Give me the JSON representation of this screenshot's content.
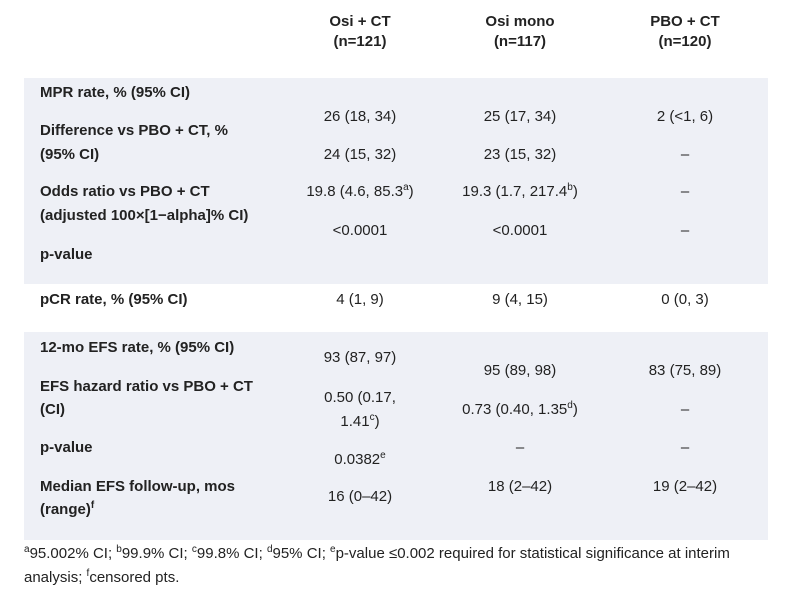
{
  "header": {
    "columns": [
      {
        "name": "Osi + CT",
        "n": "(n=121)"
      },
      {
        "name": "Osi mono",
        "n": "(n=117)"
      },
      {
        "name": "PBO + CT",
        "n": "(n=120)"
      }
    ]
  },
  "mpr": {
    "labels": [
      "MPR rate, % (95% CI)",
      "Difference vs PBO + CT, %",
      "(95% CI)",
      "Odds ratio vs PBO + CT",
      "(adjusted 100×[1−alpha]% CI)",
      "p-value"
    ],
    "cells": [
      [
        "26 (18, 34)",
        "24 (15, 32)",
        {
          "text": "19.8 (4.6, 85.3",
          "sup": "a",
          "tail": ")"
        },
        "<0.0001"
      ],
      [
        "25 (17, 34)",
        "23 (15, 32)",
        {
          "text": "19.3 (1.7, 217.4",
          "sup": "b",
          "tail": ")"
        },
        "<0.0001"
      ],
      [
        "2 (<1, 6)",
        "–",
        "–",
        "–"
      ]
    ]
  },
  "pcr": {
    "label": "pCR rate, % (95% CI)",
    "cells": [
      "4 (1, 9)",
      "9 (4, 15)",
      "0 (0, 3)"
    ]
  },
  "efs": {
    "labels": [
      "12-mo EFS rate, % (95% CI)",
      "EFS hazard ratio vs PBO + CT",
      "(CI)",
      "p-value",
      "Median EFS follow-up, mos",
      {
        "text": "(range)",
        "sup": "f"
      }
    ],
    "cells": [
      [
        "93 (87, 97)",
        "0.50 (0.17,",
        {
          "text": "1.41",
          "sup": "c",
          "tail": ")"
        },
        {
          "text": "0.0382",
          "sup": "e"
        },
        "16 (0–42)"
      ],
      [
        "95 (89, 98)",
        {
          "text": "0.73 (0.40, 1.35",
          "sup": "d",
          "tail": ")"
        },
        "–",
        "18 (2–42)"
      ],
      [
        "83 (75, 89)",
        "–",
        "–",
        "19 (2–42)"
      ]
    ]
  },
  "footnote": [
    {
      "sup": "a",
      "text": "95.002% CI; "
    },
    {
      "sup": "b",
      "text": "99.9% CI; "
    },
    {
      "sup": "c",
      "text": "99.8% CI; "
    },
    {
      "sup": "d",
      "text": "95% CI; "
    },
    {
      "sup": "e",
      "text": "p-value ≤0.002 required for statistical significance at interim analysis; "
    },
    {
      "sup": "f",
      "text": "censored pts."
    }
  ]
}
